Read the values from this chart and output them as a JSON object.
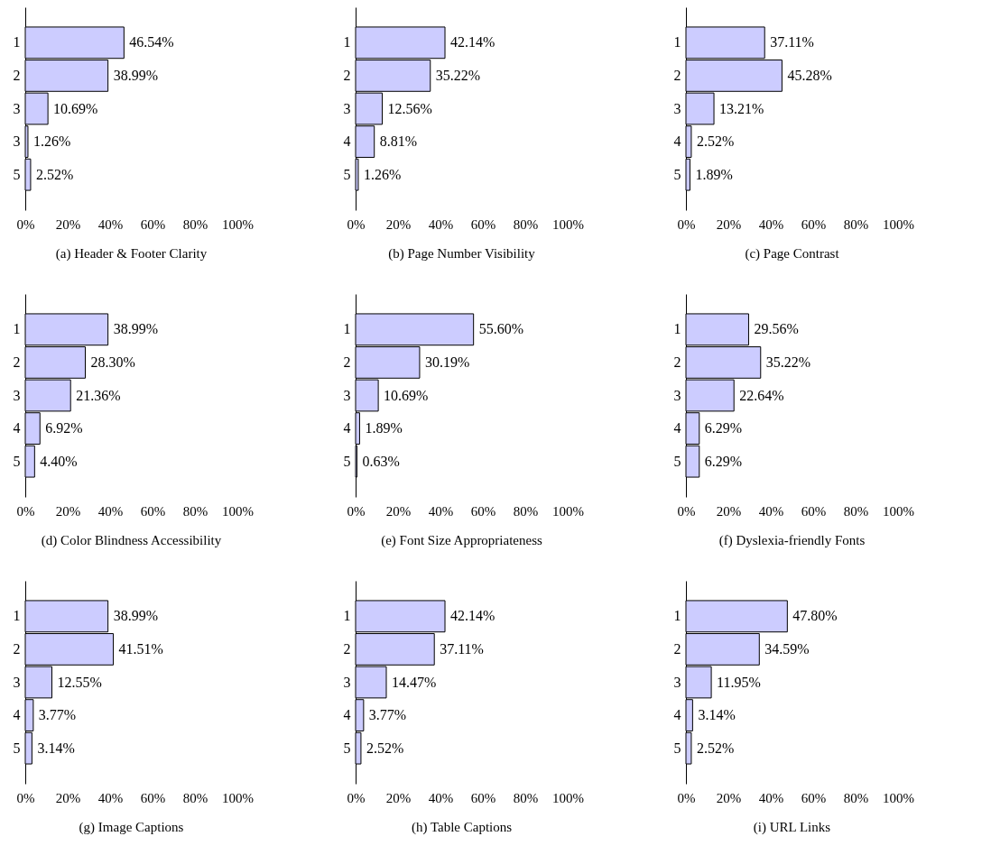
{
  "chart_data": [
    {
      "type": "bar",
      "orientation": "horizontal",
      "title": "(a) Header & Footer Clarity",
      "categories": [
        "1",
        "2",
        "3",
        "3",
        "5"
      ],
      "values": [
        46.54,
        38.99,
        10.69,
        1.26,
        2.52
      ],
      "value_labels": [
        "46.54%",
        "38.99%",
        "10.69%",
        "1.26%",
        "2.52%"
      ],
      "color": "#ccccff",
      "xlim": [
        0,
        100
      ],
      "xticks": [
        {
          "value": 0,
          "label": "0%"
        },
        {
          "value": 20,
          "label": "20%"
        },
        {
          "value": 40,
          "label": "40%"
        },
        {
          "value": 60,
          "label": "60%"
        },
        {
          "value": 80,
          "label": "80%"
        },
        {
          "value": 100,
          "label": "100%"
        }
      ]
    },
    {
      "type": "bar",
      "orientation": "horizontal",
      "title": "(b) Page Number Visibility",
      "categories": [
        "1",
        "2",
        "3",
        "4",
        "5"
      ],
      "values": [
        42.14,
        35.22,
        12.56,
        8.81,
        1.26
      ],
      "value_labels": [
        "42.14%",
        "35.22%",
        "12.56%",
        "8.81%",
        "1.26%"
      ],
      "color": "#ccccff",
      "xlim": [
        0,
        100
      ],
      "xticks": [
        {
          "value": 0,
          "label": "0%"
        },
        {
          "value": 20,
          "label": "20%"
        },
        {
          "value": 40,
          "label": "40%"
        },
        {
          "value": 60,
          "label": "60%"
        },
        {
          "value": 80,
          "label": "80%"
        },
        {
          "value": 100,
          "label": "100%"
        }
      ]
    },
    {
      "type": "bar",
      "orientation": "horizontal",
      "title": "(c) Page Contrast",
      "categories": [
        "1",
        "2",
        "3",
        "4",
        "5"
      ],
      "values": [
        37.11,
        45.28,
        13.21,
        2.52,
        1.89
      ],
      "value_labels": [
        "37.11%",
        "45.28%",
        "13.21%",
        "2.52%",
        "1.89%"
      ],
      "color": "#ccccff",
      "xlim": [
        0,
        100
      ],
      "xticks": [
        {
          "value": 0,
          "label": "0%"
        },
        {
          "value": 20,
          "label": "20%"
        },
        {
          "value": 40,
          "label": "40%"
        },
        {
          "value": 60,
          "label": "60%"
        },
        {
          "value": 80,
          "label": "80%"
        },
        {
          "value": 100,
          "label": "100%"
        }
      ]
    },
    {
      "type": "bar",
      "orientation": "horizontal",
      "title": "(d) Color Blindness Accessibility",
      "categories": [
        "1",
        "2",
        "3",
        "4",
        "5"
      ],
      "values": [
        38.99,
        28.3,
        21.36,
        6.92,
        4.4
      ],
      "value_labels": [
        "38.99%",
        "28.30%",
        "21.36%",
        "6.92%",
        "4.40%"
      ],
      "color": "#ccccff",
      "xlim": [
        0,
        100
      ],
      "xticks": [
        {
          "value": 0,
          "label": "0%"
        },
        {
          "value": 20,
          "label": "20%"
        },
        {
          "value": 40,
          "label": "40%"
        },
        {
          "value": 60,
          "label": "60%"
        },
        {
          "value": 80,
          "label": "80%"
        },
        {
          "value": 100,
          "label": "100%"
        }
      ]
    },
    {
      "type": "bar",
      "orientation": "horizontal",
      "title": "(e) Font Size Appropriateness",
      "categories": [
        "1",
        "2",
        "3",
        "4",
        "5"
      ],
      "values": [
        55.6,
        30.19,
        10.69,
        1.89,
        0.63
      ],
      "value_labels": [
        "55.60%",
        "30.19%",
        "10.69%",
        "1.89%",
        "0.63%"
      ],
      "color": "#ccccff",
      "xlim": [
        0,
        100
      ],
      "xticks": [
        {
          "value": 0,
          "label": "0%"
        },
        {
          "value": 20,
          "label": "20%"
        },
        {
          "value": 40,
          "label": "40%"
        },
        {
          "value": 60,
          "label": "60%"
        },
        {
          "value": 80,
          "label": "80%"
        },
        {
          "value": 100,
          "label": "100%"
        }
      ]
    },
    {
      "type": "bar",
      "orientation": "horizontal",
      "title": "(f) Dyslexia-friendly Fonts",
      "categories": [
        "1",
        "2",
        "3",
        "4",
        "5"
      ],
      "values": [
        29.56,
        35.22,
        22.64,
        6.29,
        6.29
      ],
      "value_labels": [
        "29.56%",
        "35.22%",
        "22.64%",
        "6.29%",
        "6.29%"
      ],
      "color": "#ccccff",
      "xlim": [
        0,
        100
      ],
      "xticks": [
        {
          "value": 0,
          "label": "0%"
        },
        {
          "value": 20,
          "label": "20%"
        },
        {
          "value": 40,
          "label": "40%"
        },
        {
          "value": 60,
          "label": "60%"
        },
        {
          "value": 80,
          "label": "80%"
        },
        {
          "value": 100,
          "label": "100%"
        }
      ]
    },
    {
      "type": "bar",
      "orientation": "horizontal",
      "title": "(g) Image Captions",
      "categories": [
        "1",
        "2",
        "3",
        "4",
        "5"
      ],
      "values": [
        38.99,
        41.51,
        12.55,
        3.77,
        3.14
      ],
      "value_labels": [
        "38.99%",
        "41.51%",
        "12.55%",
        "3.77%",
        "3.14%"
      ],
      "color": "#ccccff",
      "xlim": [
        0,
        100
      ],
      "xticks": [
        {
          "value": 0,
          "label": "0%"
        },
        {
          "value": 20,
          "label": "20%"
        },
        {
          "value": 40,
          "label": "40%"
        },
        {
          "value": 60,
          "label": "60%"
        },
        {
          "value": 80,
          "label": "80%"
        },
        {
          "value": 100,
          "label": "100%"
        }
      ]
    },
    {
      "type": "bar",
      "orientation": "horizontal",
      "title": "(h) Table Captions",
      "categories": [
        "1",
        "2",
        "3",
        "4",
        "5"
      ],
      "values": [
        42.14,
        37.11,
        14.47,
        3.77,
        2.52
      ],
      "value_labels": [
        "42.14%",
        "37.11%",
        "14.47%",
        "3.77%",
        "2.52%"
      ],
      "color": "#ccccff",
      "xlim": [
        0,
        100
      ],
      "xticks": [
        {
          "value": 0,
          "label": "0%"
        },
        {
          "value": 20,
          "label": "20%"
        },
        {
          "value": 40,
          "label": "40%"
        },
        {
          "value": 60,
          "label": "60%"
        },
        {
          "value": 80,
          "label": "80%"
        },
        {
          "value": 100,
          "label": "100%"
        }
      ]
    },
    {
      "type": "bar",
      "orientation": "horizontal",
      "title": "(i) URL Links",
      "categories": [
        "1",
        "2",
        "3",
        "4",
        "5"
      ],
      "values": [
        47.8,
        34.59,
        11.95,
        3.14,
        2.52
      ],
      "value_labels": [
        "47.80%",
        "34.59%",
        "11.95%",
        "3.14%",
        "2.52%"
      ],
      "color": "#ccccff",
      "xlim": [
        0,
        100
      ],
      "xticks": [
        {
          "value": 0,
          "label": "0%"
        },
        {
          "value": 20,
          "label": "20%"
        },
        {
          "value": 40,
          "label": "40%"
        },
        {
          "value": 60,
          "label": "60%"
        },
        {
          "value": 80,
          "label": "80%"
        },
        {
          "value": 100,
          "label": "100%"
        }
      ]
    }
  ]
}
